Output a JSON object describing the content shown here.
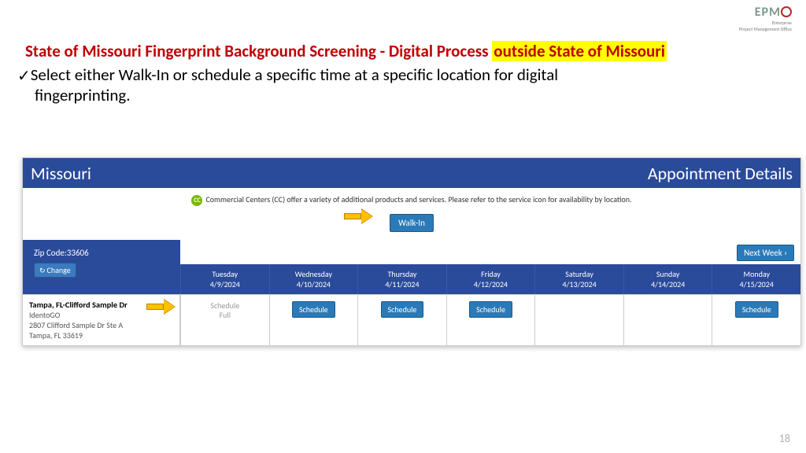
{
  "logo": {
    "text": "EPM",
    "sub1": "Enterprise",
    "sub2": "Project Management Office"
  },
  "title": {
    "part1": "State of Missouri Fingerprint Background Screening  - Digital Process ",
    "highlight": "outside State of Missouri"
  },
  "bullet": {
    "line1": "Select either Walk-In or schedule a specific time at a specific location for digital",
    "line2": "fingerprinting."
  },
  "panel": {
    "left": "Missouri",
    "right": "Appointment Details",
    "cc_text": "Commercial Centers (CC) offer a variety of additional products and services. Please refer to the service icon for availability by location.",
    "cc_badge": "CC",
    "walkin": "Walk-In",
    "zip_label": "Zip Code:33606",
    "change": "Change",
    "next": "Next Week ›",
    "days": [
      {
        "name": "Tuesday",
        "date": "4/9/2024"
      },
      {
        "name": "Wednesday",
        "date": "4/10/2024"
      },
      {
        "name": "Thursday",
        "date": "4/11/2024"
      },
      {
        "name": "Friday",
        "date": "4/12/2024"
      },
      {
        "name": "Saturday",
        "date": "4/13/2024"
      },
      {
        "name": "Sunday",
        "date": "4/14/2024"
      },
      {
        "name": "Monday",
        "date": "4/15/2024"
      }
    ],
    "location": {
      "name": "Tampa, FL-Clifford Sample Dr",
      "org": "IdentoGO",
      "addr1": "2807 Clifford Sample Dr Ste A",
      "addr2": "Tampa, FL 33619"
    },
    "slots": [
      {
        "type": "full",
        "label1": "Schedule",
        "label2": "Full"
      },
      {
        "type": "open",
        "label": "Schedule"
      },
      {
        "type": "open",
        "label": "Schedule"
      },
      {
        "type": "open",
        "label": "Schedule"
      },
      {
        "type": "none"
      },
      {
        "type": "none"
      },
      {
        "type": "open",
        "label": "Schedule"
      }
    ]
  },
  "page_num": "18"
}
